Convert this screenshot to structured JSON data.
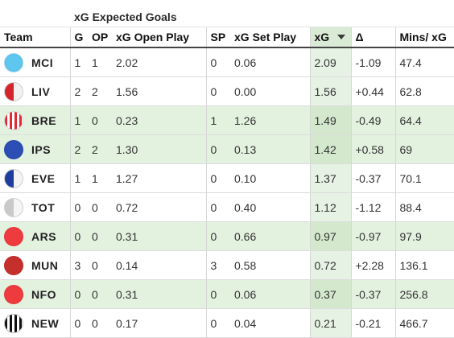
{
  "group_header": {
    "xg_expected_goals": "xG Expected Goals"
  },
  "columns": {
    "team": "Team",
    "g": "G",
    "op": "OP",
    "xg_open_play": "xG Open Play",
    "sp": "SP",
    "xg_set_play": "xG Set Play",
    "xg": "xG",
    "delta": "Δ",
    "mins_per_xg": "Mins/ xG"
  },
  "sort": {
    "column": "xG",
    "direction": "descending",
    "icon": "sort-down-arrow-icon"
  },
  "rows": [
    {
      "team": "MCI",
      "badge": "sky-blue-solid",
      "g": "1",
      "op": "1",
      "xg_open_play": "2.02",
      "sp": "0",
      "xg_set_play": "0.06",
      "xg": "2.09",
      "delta": "-1.09",
      "mins_per_xg": "47.4",
      "highlighted": false
    },
    {
      "team": "LIV",
      "badge": "red-half",
      "g": "2",
      "op": "2",
      "xg_open_play": "1.56",
      "sp": "0",
      "xg_set_play": "0.00",
      "xg": "1.56",
      "delta": "+0.44",
      "mins_per_xg": "62.8",
      "highlighted": false
    },
    {
      "team": "BRE",
      "badge": "red-white-stripes",
      "g": "1",
      "op": "0",
      "xg_open_play": "0.23",
      "sp": "1",
      "xg_set_play": "1.26",
      "xg": "1.49",
      "delta": "-0.49",
      "mins_per_xg": "64.4",
      "highlighted": true
    },
    {
      "team": "IPS",
      "badge": "blue-solid",
      "g": "2",
      "op": "2",
      "xg_open_play": "1.30",
      "sp": "0",
      "xg_set_play": "0.13",
      "xg": "1.42",
      "delta": "+0.58",
      "mins_per_xg": "69",
      "highlighted": true
    },
    {
      "team": "EVE",
      "badge": "blue-half",
      "g": "1",
      "op": "1",
      "xg_open_play": "1.27",
      "sp": "0",
      "xg_set_play": "0.10",
      "xg": "1.37",
      "delta": "-0.37",
      "mins_per_xg": "70.1",
      "highlighted": false
    },
    {
      "team": "TOT",
      "badge": "grey-half",
      "g": "0",
      "op": "0",
      "xg_open_play": "0.72",
      "sp": "0",
      "xg_set_play": "0.40",
      "xg": "1.12",
      "delta": "-1.12",
      "mins_per_xg": "88.4",
      "highlighted": false
    },
    {
      "team": "ARS",
      "badge": "red-solid",
      "g": "0",
      "op": "0",
      "xg_open_play": "0.31",
      "sp": "0",
      "xg_set_play": "0.66",
      "xg": "0.97",
      "delta": "-0.97",
      "mins_per_xg": "97.9",
      "highlighted": true
    },
    {
      "team": "MUN",
      "badge": "dark-red-solid",
      "g": "3",
      "op": "0",
      "xg_open_play": "0.14",
      "sp": "3",
      "xg_set_play": "0.58",
      "xg": "0.72",
      "delta": "+2.28",
      "mins_per_xg": "136.1",
      "highlighted": false
    },
    {
      "team": "NFO",
      "badge": "red-solid",
      "g": "0",
      "op": "0",
      "xg_open_play": "0.31",
      "sp": "0",
      "xg_set_play": "0.06",
      "xg": "0.37",
      "delta": "-0.37",
      "mins_per_xg": "256.8",
      "highlighted": true
    },
    {
      "team": "NEW",
      "badge": "black-white-stripes",
      "g": "0",
      "op": "0",
      "xg_open_play": "0.17",
      "sp": "0",
      "xg_set_play": "0.04",
      "xg": "0.21",
      "delta": "-0.21",
      "mins_per_xg": "466.7",
      "highlighted": false
    }
  ],
  "colors": {
    "row_highlight": "#e3f1df",
    "sorted_column": "#d9ebd5",
    "header_rule": "#444444",
    "row_divider": "#dcdcdc"
  }
}
